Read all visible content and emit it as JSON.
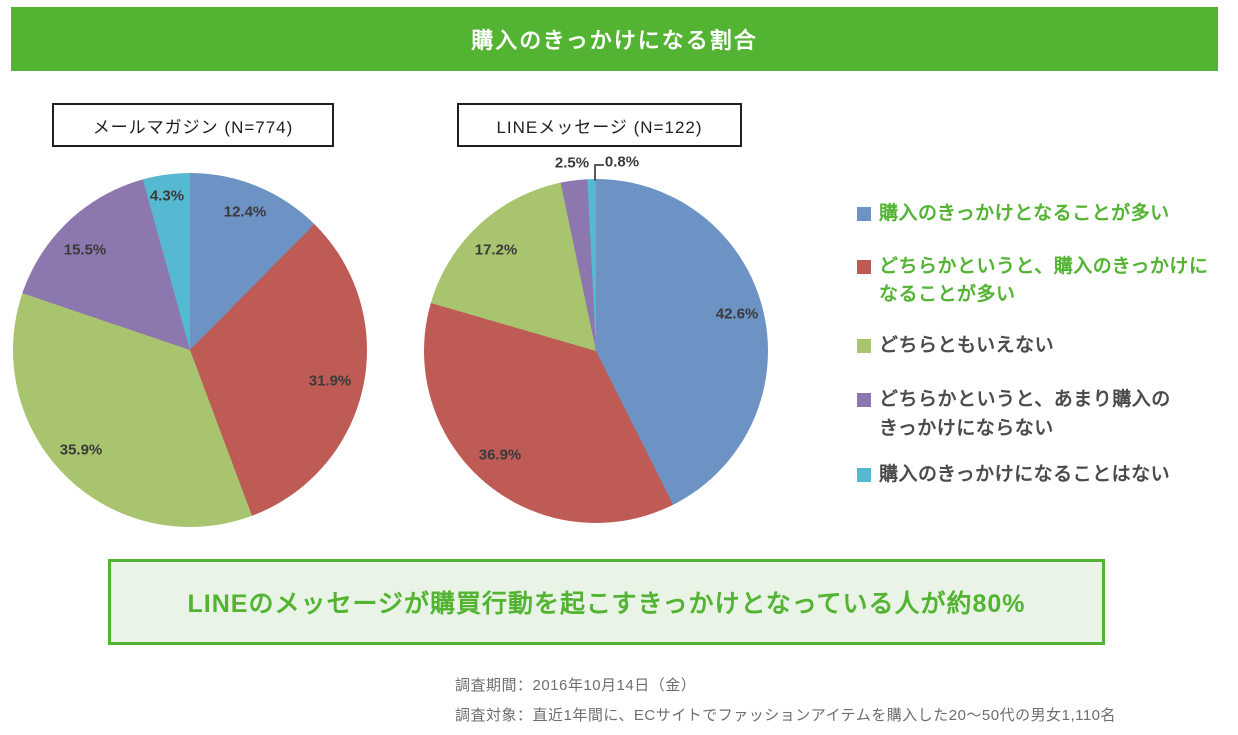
{
  "colors": {
    "accent_green": "#53b332",
    "callout_bg": "#e9f4e6",
    "legend_text": "#4b4b4b",
    "banner_text": "#ffffff"
  },
  "header": {
    "title": "購入のきっかけになる割合"
  },
  "charts": [
    {
      "label": "メールマガジン (N=774)"
    },
    {
      "label": "LINEメッセージ (N=122)"
    }
  ],
  "chart_data": [
    {
      "type": "pie",
      "title": "メールマガジン (N=774)",
      "n": 774,
      "labels": [
        "購入のきっかけとなることが多い",
        "どちらかというと、購入のきっかけになることが多い",
        "どちらともいえない",
        "どちらかというと、あまり購入のきっかけにならない",
        "購入のきっかけになることはない"
      ],
      "values": [
        12.4,
        31.9,
        35.9,
        15.5,
        4.3
      ],
      "value_labels": [
        "12.4%",
        "31.9%",
        "35.9%",
        "15.5%",
        "4.3%"
      ],
      "colors": [
        "#6c93c4",
        "#bf5b55",
        "#a9c46f",
        "#8c77ae",
        "#57b8d1"
      ],
      "start_angle": "top",
      "direction": "clockwise"
    },
    {
      "type": "pie",
      "title": "LINEメッセージ (N=122)",
      "n": 122,
      "labels": [
        "購入のきっかけとなることが多い",
        "どちらかというと、購入のきっかけになることが多い",
        "どちらともいえない",
        "どちらかというと、あまり購入のきっかけにならない",
        "購入のきっかけになることはない"
      ],
      "values": [
        42.6,
        36.9,
        17.2,
        2.5,
        0.8
      ],
      "value_labels": [
        "42.6%",
        "36.9%",
        "17.2%",
        "2.5%",
        "0.8%"
      ],
      "colors": [
        "#6c93c4",
        "#bf5b55",
        "#a9c46f",
        "#8c77ae",
        "#57b8d1"
      ],
      "start_angle": "top",
      "direction": "clockwise"
    }
  ],
  "legend": {
    "items": [
      {
        "label": "購入のきっかけとなることが多い",
        "highlighted": true
      },
      {
        "label": "どちらかというと、購入のきっかけに\nなることが多い",
        "highlighted": true
      },
      {
        "label": "どちらともいえない",
        "highlighted": false
      },
      {
        "label": "どちらかというと、あまり購入の\nきっかけにならない",
        "highlighted": false
      },
      {
        "label": "購入のきっかけになることはない",
        "highlighted": false
      }
    ]
  },
  "callout": {
    "text": "LINEのメッセージが購買行動を起こすきっかけとなっている人が約80%"
  },
  "footer": {
    "lines": [
      "調査期間：2016年10月14日（金）",
      "調査対象：直近1年間に、ECサイトでファッションアイテムを購入した20～50代の男女1,110名"
    ]
  }
}
